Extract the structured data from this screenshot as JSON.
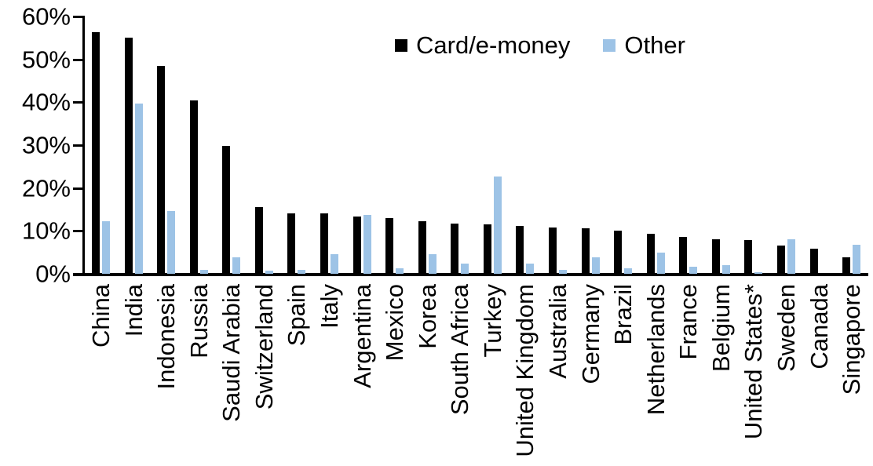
{
  "chart_data": {
    "type": "bar",
    "title": "",
    "xlabel": "",
    "ylabel": "",
    "ylim": [
      0,
      60
    ],
    "grid": false,
    "legend_position": "top-center",
    "ytick_labels": [
      "60%",
      "50%",
      "40%",
      "30%",
      "20%",
      "10%",
      "0%"
    ],
    "ytick_values": [
      60,
      50,
      40,
      30,
      20,
      10,
      0
    ],
    "categories": [
      "China",
      "India",
      "Indonesia",
      "Russia",
      "Saudi Arabia",
      "Switzerland",
      "Spain",
      "Italy",
      "Argentina",
      "Mexico",
      "Korea",
      "South Africa",
      "Turkey",
      "United Kingdom",
      "Australia",
      "Germany",
      "Brazil",
      "Netherlands",
      "France",
      "Belgium",
      "United States*",
      "Sweden",
      "Canada",
      "Singapore"
    ],
    "series": [
      {
        "name": "Card/e-money",
        "color": "#000000",
        "values": [
          56.3,
          55.1,
          48.4,
          40.5,
          29.8,
          15.6,
          14.1,
          14.0,
          13.4,
          12.9,
          12.2,
          11.7,
          11.6,
          11.1,
          10.8,
          10.6,
          10.0,
          9.3,
          8.6,
          8.1,
          7.8,
          6.5,
          5.9,
          3.8
        ]
      },
      {
        "name": "Other",
        "color": "#9DC3E6",
        "values": [
          12.3,
          39.7,
          14.6,
          1.0,
          3.9,
          0.8,
          1.0,
          4.6,
          13.8,
          1.3,
          4.6,
          2.4,
          22.6,
          2.4,
          1.0,
          3.9,
          1.2,
          4.9,
          1.6,
          2.1,
          0.3,
          8.1,
          0.0,
          6.7
        ]
      }
    ]
  }
}
